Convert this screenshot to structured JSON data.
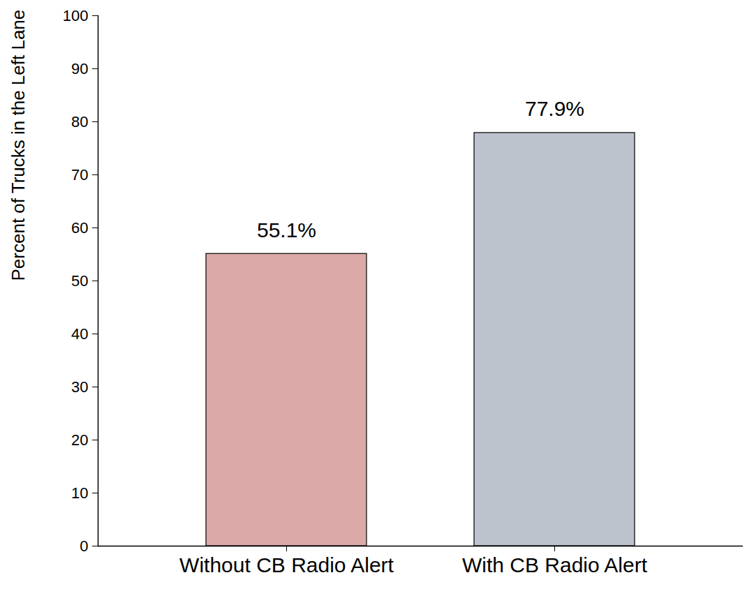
{
  "chart_data": {
    "type": "bar",
    "y_label": "Percent of Trucks in the Left Lane",
    "categories": [
      "Without CB Radio Alert",
      "With CB Radio Alert"
    ],
    "values": [
      55.1,
      77.9
    ],
    "value_labels": [
      "55.1%",
      "77.9%"
    ],
    "data_labels": true,
    "colors": [
      "#dba9a8",
      "#bcc3cd"
    ],
    "ylim": [
      0,
      100
    ],
    "yticks": [
      0,
      10,
      20,
      30,
      40,
      50,
      60,
      70,
      80,
      90,
      100
    ],
    "grid": false
  }
}
